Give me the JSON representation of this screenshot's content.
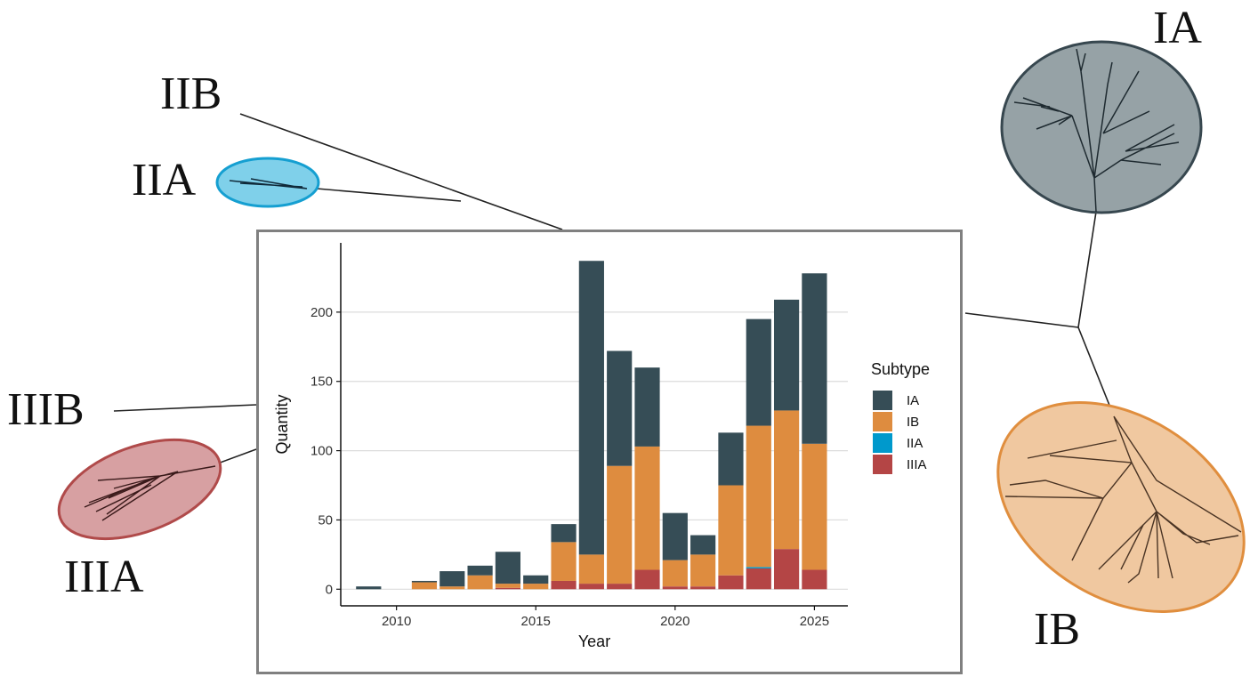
{
  "tree": {
    "labels": {
      "IA": "IA",
      "IB": "IB",
      "IIA": "IIA",
      "IIB": "IIB",
      "IIIA": "IIIA",
      "IIIB": "IIIB"
    },
    "colors": {
      "IA_fill": "#96a2a6",
      "IA_stroke": "#37474f",
      "IB_fill": "#f0c8a0",
      "IB_stroke": "#e08e3e",
      "IIA_fill": "#7fd0ea",
      "IIA_stroke": "#159fd1",
      "IIIA_fill": "#d7a0a2",
      "IIIA_stroke": "#b04a4a",
      "branch": "#222222"
    }
  },
  "chart_data": {
    "type": "bar",
    "stacked": true,
    "xlabel": "Year",
    "ylabel": "Quantity",
    "xticks": [
      2010,
      2015,
      2020,
      2025
    ],
    "yticks": [
      0,
      50,
      100,
      150,
      200
    ],
    "xlim": [
      2008,
      2026.2
    ],
    "ylim": [
      -12,
      250
    ],
    "grid": "horizontal",
    "legend": {
      "title": "Subtype",
      "placement": "right"
    },
    "x": [
      2009,
      2011,
      2012,
      2013,
      2014,
      2015,
      2016,
      2017,
      2018,
      2019,
      2020,
      2021,
      2022,
      2023,
      2024,
      2025
    ],
    "series": [
      {
        "name": "IIIA",
        "color": "#b44545",
        "values": [
          0,
          0,
          0,
          0,
          1,
          0,
          6,
          4,
          4,
          14,
          2,
          2,
          10,
          15,
          29,
          14
        ]
      },
      {
        "name": "IIA",
        "color": "#0099cc",
        "values": [
          0,
          0,
          0,
          0,
          0,
          0,
          0,
          0,
          0,
          0,
          0,
          0,
          0,
          1,
          0,
          0
        ]
      },
      {
        "name": "IB",
        "color": "#de8c3f",
        "values": [
          0,
          5,
          2,
          10,
          3,
          4,
          28,
          21,
          85,
          89,
          19,
          23,
          65,
          102,
          100,
          91
        ]
      },
      {
        "name": "IA",
        "color": "#364d56",
        "values": [
          2,
          1,
          11,
          7,
          23,
          6,
          13,
          212,
          83,
          57,
          34,
          14,
          38,
          77,
          80,
          123
        ]
      }
    ],
    "legend_order": [
      "IA",
      "IB",
      "IIA",
      "IIIA"
    ]
  }
}
